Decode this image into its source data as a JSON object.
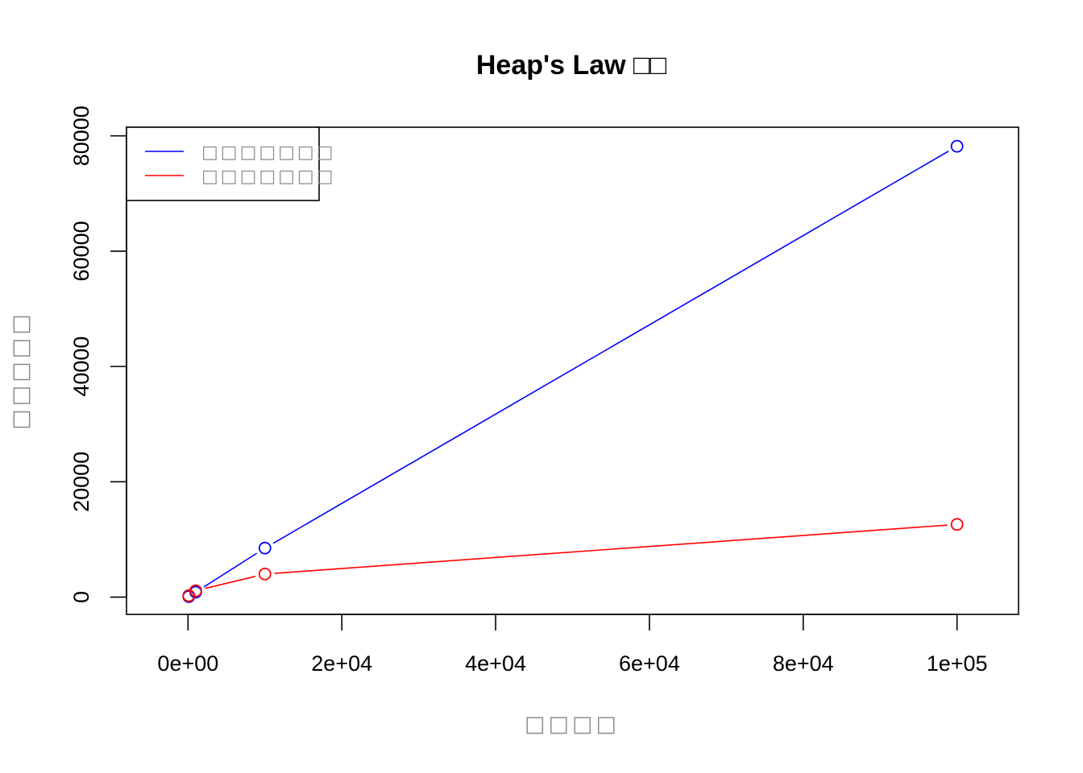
{
  "chart_data": {
    "type": "line",
    "title": "Heap's Law □□",
    "xlabel": "□□□□",
    "ylabel": "□□□□□",
    "xlim": [
      -8000,
      108000
    ],
    "ylim": [
      -3000,
      81500
    ],
    "x_ticks": [
      0,
      20000,
      40000,
      60000,
      80000,
      100000
    ],
    "x_tick_labels": [
      "0e+00",
      "2e+04",
      "4e+04",
      "6e+04",
      "8e+04",
      "1e+05"
    ],
    "y_ticks": [
      0,
      20000,
      40000,
      60000,
      80000
    ],
    "y_tick_labels": [
      "0",
      "20000",
      "40000",
      "60000",
      "80000"
    ],
    "grid": false,
    "legend_position": "top-left",
    "series": [
      {
        "name": "□□□□□□□",
        "color": "#0000ff",
        "x": [
          100,
          1000,
          10000,
          100000
        ],
        "y": [
          80,
          850,
          8500,
          78200
        ]
      },
      {
        "name": "□□□□□□□",
        "color": "#ff0000",
        "x": [
          100,
          1000,
          10000,
          100000
        ],
        "y": [
          250,
          1100,
          4000,
          12600
        ]
      }
    ]
  }
}
